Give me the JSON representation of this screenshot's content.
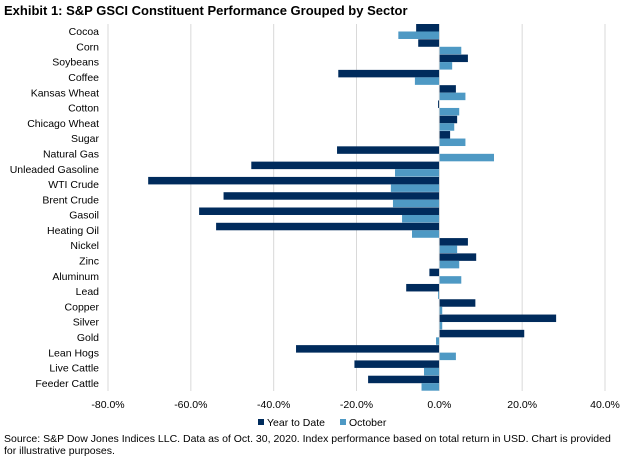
{
  "chart_data": {
    "type": "bar",
    "orientation": "horizontal",
    "title": "Exhibit 1: S&P GSCI Constituent Performance Grouped by Sector",
    "xlabel": "",
    "ylabel": "",
    "xlim": [
      -80,
      40
    ],
    "x_ticks": [
      "-80.0%",
      "-60.0%",
      "-40.0%",
      "-20.0%",
      "0.0%",
      "20.0%",
      "40.0%"
    ],
    "x_tick_values": [
      -80,
      -60,
      -40,
      -20,
      0,
      20,
      40
    ],
    "grid": "vertical",
    "legend": "bottom",
    "categories": [
      "Cocoa",
      "Corn",
      "Soybeans",
      "Coffee",
      "Kansas Wheat",
      "Cotton",
      "Chicago Wheat",
      "Sugar",
      "Natural Gas",
      "Unleaded Gasoline",
      "WTI Crude",
      "Brent Crude",
      "Gasoil",
      "Heating Oil",
      "Nickel",
      "Zinc",
      "Aluminum",
      "Lead",
      "Copper",
      "Silver",
      "Gold",
      "Lean Hogs",
      "Live Cattle",
      "Feeder Cattle"
    ],
    "series": [
      {
        "name": "Year to Date",
        "color": "#002b5c",
        "values": [
          -5.6,
          -5.1,
          6.9,
          -24.4,
          4.0,
          -0.3,
          4.3,
          2.6,
          -24.7,
          -45.4,
          -70.3,
          -52.1,
          -58.0,
          -53.9,
          6.9,
          8.9,
          -2.4,
          -8.0,
          8.7,
          28.2,
          20.5,
          -34.6,
          -20.5,
          -17.2
        ]
      },
      {
        "name": "October",
        "color": "#4e99c4",
        "values": [
          -9.9,
          5.3,
          3.1,
          -5.9,
          6.3,
          4.8,
          3.6,
          6.3,
          13.2,
          -10.7,
          -11.7,
          -11.2,
          -9.0,
          -6.6,
          4.3,
          4.8,
          5.3,
          -0.3,
          0.7,
          0.7,
          -0.8,
          4.0,
          -3.7,
          -4.3
        ]
      }
    ],
    "source": "Source: S&P Dow Jones Indices LLC. Data as of Oct. 30, 2020. Index performance based on total return in USD. Chart is provided for illustrative purposes."
  }
}
